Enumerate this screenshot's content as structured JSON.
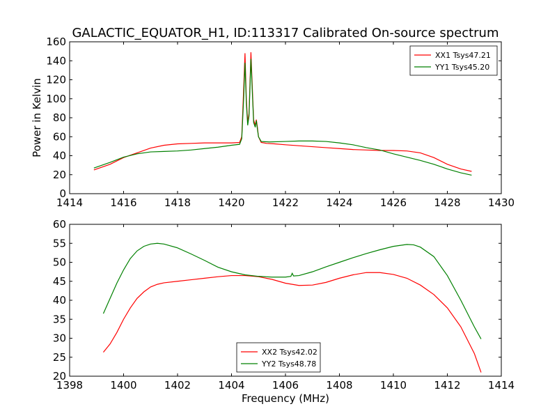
{
  "title": "GALACTIC_EQUATOR_H1, ID:113317 Calibrated On-source spectrum",
  "colors": {
    "xx": "#ff0000",
    "yy": "#008000"
  },
  "chart_data": [
    {
      "type": "line",
      "xlabel": "",
      "ylabel": "Power in Kelvin",
      "xlim": [
        1414,
        1430
      ],
      "ylim": [
        0,
        160
      ],
      "xticks": [
        1414,
        1416,
        1418,
        1420,
        1422,
        1424,
        1426,
        1428,
        1430
      ],
      "yticks": [
        0,
        20,
        40,
        60,
        80,
        100,
        120,
        140,
        160
      ],
      "legend_position": "top-right",
      "series": [
        {
          "name": "XX1 Tsys47.21",
          "color": "#ff0000",
          "points": [
            [
              1414.9,
              25
            ],
            [
              1415.5,
              31
            ],
            [
              1416,
              38
            ],
            [
              1416.5,
              43
            ],
            [
              1417,
              48
            ],
            [
              1417.5,
              51
            ],
            [
              1418,
              52.5
            ],
            [
              1418.5,
              53
            ],
            [
              1419,
              53.5
            ],
            [
              1419.5,
              53.5
            ],
            [
              1420,
              53.5
            ],
            [
              1420.3,
              54
            ],
            [
              1420.38,
              60
            ],
            [
              1420.45,
              110
            ],
            [
              1420.5,
              148
            ],
            [
              1420.55,
              100
            ],
            [
              1420.6,
              75
            ],
            [
              1420.65,
              85
            ],
            [
              1420.7,
              130
            ],
            [
              1420.72,
              149
            ],
            [
              1420.76,
              120
            ],
            [
              1420.82,
              78
            ],
            [
              1420.88,
              72
            ],
            [
              1420.92,
              78
            ],
            [
              1420.96,
              70
            ],
            [
              1421,
              60
            ],
            [
              1421.1,
              54
            ],
            [
              1421.3,
              53
            ],
            [
              1421.6,
              52.5
            ],
            [
              1422,
              51.5
            ],
            [
              1422.5,
              50.5
            ],
            [
              1423,
              49.5
            ],
            [
              1423.5,
              48.5
            ],
            [
              1424,
              47.5
            ],
            [
              1424.5,
              46.5
            ],
            [
              1425,
              46
            ],
            [
              1425.5,
              45.5
            ],
            [
              1426,
              45.5
            ],
            [
              1426.5,
              45
            ],
            [
              1427,
              43
            ],
            [
              1427.5,
              38
            ],
            [
              1428,
              31
            ],
            [
              1428.5,
              26
            ],
            [
              1428.9,
              23.5
            ]
          ]
        },
        {
          "name": "YY1 Tsys45.20",
          "color": "#008000",
          "points": [
            [
              1414.9,
              27
            ],
            [
              1415.5,
              33
            ],
            [
              1416,
              38.5
            ],
            [
              1416.5,
              42
            ],
            [
              1417,
              44
            ],
            [
              1417.5,
              44.5
            ],
            [
              1418,
              45
            ],
            [
              1418.5,
              46
            ],
            [
              1419,
              47.5
            ],
            [
              1419.5,
              49
            ],
            [
              1420,
              51
            ],
            [
              1420.3,
              52
            ],
            [
              1420.38,
              58
            ],
            [
              1420.45,
              100
            ],
            [
              1420.5,
              138
            ],
            [
              1420.55,
              95
            ],
            [
              1420.6,
              72
            ],
            [
              1420.65,
              82
            ],
            [
              1420.7,
              125
            ],
            [
              1420.72,
              142
            ],
            [
              1420.76,
              115
            ],
            [
              1420.82,
              75
            ],
            [
              1420.88,
              70
            ],
            [
              1420.92,
              77
            ],
            [
              1420.96,
              68
            ],
            [
              1421,
              60
            ],
            [
              1421.1,
              55
            ],
            [
              1421.4,
              54.5
            ],
            [
              1422,
              55
            ],
            [
              1422.5,
              55.5
            ],
            [
              1423,
              55.5
            ],
            [
              1423.5,
              55
            ],
            [
              1424,
              53.5
            ],
            [
              1424.5,
              51.5
            ],
            [
              1425,
              48.5
            ],
            [
              1425.5,
              46
            ],
            [
              1426,
              42
            ],
            [
              1426.5,
              38.5
            ],
            [
              1427,
              35
            ],
            [
              1427.5,
              31
            ],
            [
              1428,
              26
            ],
            [
              1428.5,
              22
            ],
            [
              1428.9,
              19.5
            ]
          ]
        }
      ]
    },
    {
      "type": "line",
      "xlabel": "Frequency (MHz)",
      "ylabel": "",
      "xlim": [
        1398,
        1414
      ],
      "ylim": [
        20,
        60
      ],
      "xticks": [
        1398,
        1400,
        1402,
        1404,
        1406,
        1408,
        1410,
        1412,
        1414
      ],
      "yticks": [
        20,
        25,
        30,
        35,
        40,
        45,
        50,
        55,
        60
      ],
      "legend_position": "bottom-center",
      "series": [
        {
          "name": "XX2 Tsys42.02",
          "color": "#ff0000",
          "points": [
            [
              1399.25,
              26.3
            ],
            [
              1399.5,
              28.5
            ],
            [
              1399.75,
              31.5
            ],
            [
              1400,
              35
            ],
            [
              1400.25,
              38
            ],
            [
              1400.5,
              40.5
            ],
            [
              1400.75,
              42.2
            ],
            [
              1401,
              43.5
            ],
            [
              1401.25,
              44.2
            ],
            [
              1401.5,
              44.6
            ],
            [
              1402,
              45
            ],
            [
              1402.5,
              45.4
            ],
            [
              1403,
              45.8
            ],
            [
              1403.5,
              46.2
            ],
            [
              1404,
              46.5
            ],
            [
              1404.5,
              46.5
            ],
            [
              1405,
              46.2
            ],
            [
              1405.5,
              45.5
            ],
            [
              1406,
              44.5
            ],
            [
              1406.5,
              43.9
            ],
            [
              1407,
              44
            ],
            [
              1407.5,
              44.7
            ],
            [
              1408,
              45.8
            ],
            [
              1408.5,
              46.7
            ],
            [
              1409,
              47.3
            ],
            [
              1409.5,
              47.3
            ],
            [
              1410,
              46.8
            ],
            [
              1410.5,
              45.8
            ],
            [
              1411,
              44
            ],
            [
              1411.5,
              41.5
            ],
            [
              1412,
              38
            ],
            [
              1412.5,
              33
            ],
            [
              1413,
              26
            ],
            [
              1413.25,
              21
            ]
          ]
        },
        {
          "name": "YY2 Tsys48.78",
          "color": "#008000",
          "points": [
            [
              1399.25,
              36.5
            ],
            [
              1399.5,
              40.5
            ],
            [
              1399.75,
              44.5
            ],
            [
              1400,
              48
            ],
            [
              1400.25,
              51
            ],
            [
              1400.5,
              53
            ],
            [
              1400.75,
              54.2
            ],
            [
              1401,
              54.8
            ],
            [
              1401.25,
              55
            ],
            [
              1401.5,
              54.8
            ],
            [
              1402,
              53.8
            ],
            [
              1402.5,
              52.2
            ],
            [
              1403,
              50.5
            ],
            [
              1403.5,
              48.7
            ],
            [
              1404,
              47.5
            ],
            [
              1404.5,
              46.7
            ],
            [
              1405,
              46.3
            ],
            [
              1405.5,
              46.1
            ],
            [
              1406,
              46.1
            ],
            [
              1406.2,
              46.3
            ],
            [
              1406.25,
              47.1
            ],
            [
              1406.3,
              46.4
            ],
            [
              1406.5,
              46.5
            ],
            [
              1407,
              47.5
            ],
            [
              1407.5,
              48.8
            ],
            [
              1408,
              50
            ],
            [
              1408.5,
              51.2
            ],
            [
              1409,
              52.3
            ],
            [
              1409.5,
              53.3
            ],
            [
              1410,
              54.2
            ],
            [
              1410.5,
              54.7
            ],
            [
              1410.75,
              54.6
            ],
            [
              1411,
              54
            ],
            [
              1411.5,
              51.5
            ],
            [
              1412,
              46.5
            ],
            [
              1412.5,
              40
            ],
            [
              1413,
              33
            ],
            [
              1413.25,
              29.8
            ]
          ]
        }
      ]
    }
  ]
}
